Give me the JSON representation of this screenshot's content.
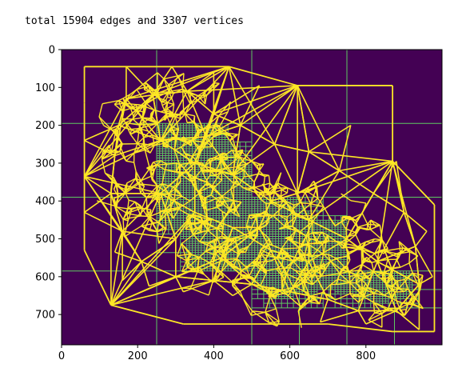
{
  "chart_data": {
    "type": "image-plot",
    "title": "total 15904 edges and 3307 vertices",
    "xlabel": "",
    "ylabel": "",
    "xlim": [
      0,
      1000
    ],
    "ylim": [
      780,
      0
    ],
    "x_ticks": [
      0,
      200,
      400,
      600,
      800
    ],
    "y_ticks": [
      0,
      100,
      200,
      300,
      400,
      500,
      600,
      700
    ],
    "grid": false,
    "background_color": "#440154",
    "mesh_color": "#fde725",
    "quadtree_color": "#5ec962",
    "edges_count": 15904,
    "vertices_count": 3307
  }
}
